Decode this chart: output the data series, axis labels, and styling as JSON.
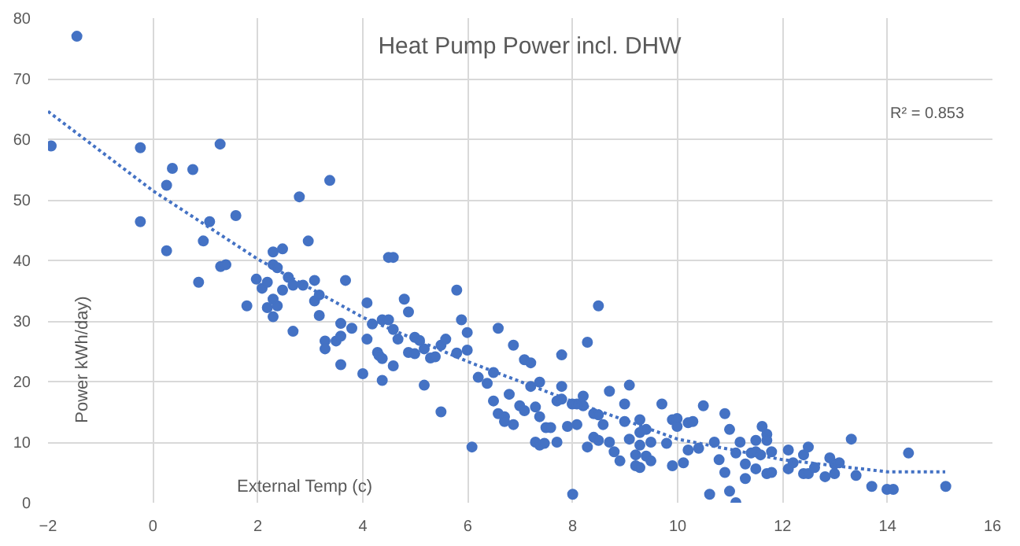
{
  "chart_data": {
    "type": "scatter",
    "title": "Heat Pump Power incl. DHW",
    "xlabel": "External Temp (c)",
    "ylabel": "Power kWh/day)",
    "annotations": [
      "R² = 0.853"
    ],
    "xlim": [
      -2,
      16
    ],
    "xticks": [
      -2,
      0,
      2,
      4,
      6,
      8,
      10,
      12,
      14,
      16
    ],
    "ylim": [
      0,
      80
    ],
    "yticks": [
      0,
      10,
      20,
      30,
      40,
      50,
      60,
      70,
      80
    ],
    "grid": true,
    "marker": "circle",
    "series": [
      {
        "color": "#4472c4",
        "x": [
          -1.45,
          -1.94,
          -0.24,
          -0.24,
          0.26,
          0.37,
          0.26,
          0.76,
          1.28,
          0.87,
          0.96,
          1.08,
          1.29,
          1.39,
          1.58,
          1.79,
          1.97,
          2.08,
          2.18,
          2.18,
          2.29,
          2.29,
          2.29,
          2.29,
          2.37,
          2.37,
          2.47,
          2.47,
          2.58,
          2.67,
          2.67,
          2.79,
          2.86,
          2.96,
          3.08,
          3.08,
          3.17,
          3.17,
          3.28,
          3.28,
          3.37,
          3.49,
          3.58,
          3.58,
          3.58,
          3.67,
          3.79,
          4.0,
          4.08,
          4.08,
          4.18,
          4.28,
          4.31,
          4.37,
          4.37,
          4.49,
          4.37,
          4.49,
          4.58,
          4.58,
          4.58,
          4.67,
          4.79,
          4.87,
          4.87,
          4.99,
          4.99,
          5.08,
          5.17,
          5.17,
          5.29,
          5.38,
          5.49,
          5.58,
          5.49,
          5.79,
          5.79,
          5.88,
          5.99,
          5.99,
          6.08,
          6.2,
          6.37,
          6.49,
          6.49,
          6.58,
          6.58,
          6.7,
          6.7,
          6.79,
          6.87,
          6.87,
          6.99,
          7.08,
          7.08,
          7.2,
          7.2,
          7.29,
          7.29,
          7.37,
          7.46,
          7.37,
          7.37,
          7.49,
          7.58,
          7.7,
          7.7,
          7.79,
          7.79,
          7.79,
          7.9,
          7.99,
          8.08,
          8.2,
          8.0,
          8.08,
          8.2,
          8.28,
          8.28,
          8.4,
          8.49,
          8.4,
          8.49,
          8.49,
          8.58,
          8.7,
          8.7,
          8.79,
          8.9,
          8.99,
          8.99,
          9.08,
          9.08,
          9.2,
          9.2,
          9.28,
          9.28,
          9.28,
          9.28,
          9.4,
          9.4,
          9.49,
          9.49,
          9.7,
          9.79,
          9.9,
          9.99,
          9.99,
          9.9,
          10.11,
          10.2,
          10.29,
          10.2,
          10.4,
          10.49,
          10.61,
          10.7,
          10.79,
          10.9,
          10.9,
          10.99,
          10.99,
          11.11,
          11.11,
          11.19,
          11.29,
          11.29,
          11.4,
          11.49,
          11.58,
          11.49,
          11.49,
          11.61,
          11.7,
          11.7,
          11.7,
          11.79,
          11.79,
          12.11,
          12.11,
          12.2,
          12.4,
          12.4,
          12.49,
          12.49,
          12.61,
          12.81,
          12.9,
          12.99,
          13.08,
          12.99,
          13.31,
          13.4,
          13.7,
          13.99,
          14.11,
          14.4,
          15.11
        ],
        "values": [
          77,
          58.9,
          58.6,
          46.4,
          52.4,
          55.2,
          41.6,
          55.0,
          59.2,
          36.4,
          43.2,
          46.4,
          39.0,
          39.3,
          47.4,
          32.5,
          36.9,
          35.4,
          36.4,
          32.2,
          41.4,
          33.6,
          30.7,
          39.3,
          38.8,
          32.5,
          41.9,
          35.1,
          37.2,
          35.9,
          28.3,
          50.5,
          35.9,
          43.2,
          36.7,
          33.3,
          34.3,
          30.9,
          26.7,
          25.4,
          53.2,
          26.7,
          29.6,
          27.5,
          22.8,
          36.7,
          28.8,
          21.3,
          33.0,
          27.0,
          29.5,
          24.8,
          24.3,
          23.8,
          30.2,
          30.2,
          20.2,
          40.5,
          40.5,
          28.6,
          22.6,
          27.0,
          33.6,
          31.5,
          24.8,
          24.6,
          27.3,
          26.8,
          25.4,
          19.4,
          23.9,
          24.1,
          26.0,
          27.0,
          15.0,
          35.1,
          24.7,
          30.2,
          28.1,
          25.2,
          9.2,
          20.7,
          19.7,
          21.5,
          16.8,
          28.8,
          14.7,
          14.2,
          13.4,
          17.9,
          26.0,
          12.9,
          16.0,
          15.2,
          23.6,
          23.1,
          19.2,
          15.8,
          10.0,
          9.5,
          9.8,
          19.9,
          14.2,
          12.4,
          12.4,
          16.8,
          10.0,
          24.4,
          19.2,
          17.1,
          12.6,
          16.3,
          16.3,
          16.0,
          1.4,
          12.9,
          17.6,
          26.5,
          9.2,
          14.7,
          14.5,
          10.8,
          10.3,
          32.5,
          12.9,
          18.4,
          10.0,
          8.4,
          6.9,
          16.3,
          13.4,
          19.4,
          10.5,
          7.9,
          6.1,
          5.8,
          13.7,
          11.6,
          9.5,
          12.1,
          7.7,
          6.9,
          10.0,
          16.3,
          9.8,
          13.7,
          13.9,
          12.6,
          6.1,
          6.6,
          13.2,
          13.4,
          8.7,
          9.0,
          16.0,
          1.4,
          10.0,
          7.1,
          14.7,
          5.0,
          12.1,
          1.9,
          0,
          8.2,
          10.0,
          6.4,
          4.0,
          8.2,
          8.4,
          7.9,
          10.3,
          5.6,
          12.6,
          11.3,
          10.3,
          4.8,
          5.0,
          8.4,
          8.7,
          5.6,
          6.6,
          7.9,
          4.8,
          4.8,
          9.2,
          5.8,
          4.3,
          7.4,
          6.4,
          6.6,
          4.8,
          10.5,
          4.5,
          2.7,
          2.2,
          2.2,
          8.2,
          2.7
        ]
      },
      {
        "type": "line",
        "color": "#4472c4",
        "line_style": "dotted",
        "marker": "none",
        "x": [
          -2,
          0,
          2,
          4,
          6,
          8,
          10,
          12,
          14,
          15.1
        ],
        "values": [
          64.6,
          51.5,
          40.2,
          30.6,
          23.3,
          16.7,
          10.5,
          7.1,
          5.1,
          5.1
        ]
      }
    ]
  }
}
